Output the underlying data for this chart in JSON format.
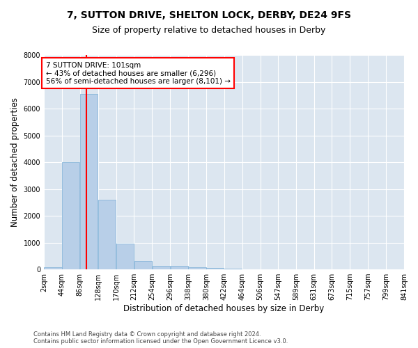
{
  "title1": "7, SUTTON DRIVE, SHELTON LOCK, DERBY, DE24 9FS",
  "title2": "Size of property relative to detached houses in Derby",
  "xlabel": "Distribution of detached houses by size in Derby",
  "ylabel": "Number of detached properties",
  "bar_color": "#b8cfe8",
  "bar_edgecolor": "#7aaed6",
  "background_color": "#dce6f0",
  "vline_x": 101,
  "vline_color": "red",
  "annotation_line1": "7 SUTTON DRIVE: 101sqm",
  "annotation_line2": "← 43% of detached houses are smaller (6,296)",
  "annotation_line3": "56% of semi-detached houses are larger (8,101) →",
  "annotation_box_color": "white",
  "annotation_box_edgecolor": "red",
  "footer1": "Contains HM Land Registry data © Crown copyright and database right 2024.",
  "footer2": "Contains public sector information licensed under the Open Government Licence v3.0.",
  "bin_edges": [
    2,
    44,
    86,
    128,
    170,
    212,
    254,
    296,
    338,
    380,
    422,
    464,
    506,
    547,
    589,
    631,
    673,
    715,
    757,
    799,
    841
  ],
  "bar_heights": [
    75,
    4000,
    6550,
    2600,
    950,
    320,
    130,
    120,
    75,
    55,
    20,
    15,
    0,
    0,
    0,
    0,
    0,
    0,
    0,
    0
  ],
  "ylim": [
    0,
    8000
  ],
  "xlim": [
    2,
    841
  ],
  "yticks": [
    0,
    1000,
    2000,
    3000,
    4000,
    5000,
    6000,
    7000,
    8000
  ],
  "title1_fontsize": 10,
  "title2_fontsize": 9,
  "axis_label_fontsize": 8.5,
  "tick_fontsize": 7,
  "annotation_fontsize": 7.5,
  "footer_fontsize": 6
}
